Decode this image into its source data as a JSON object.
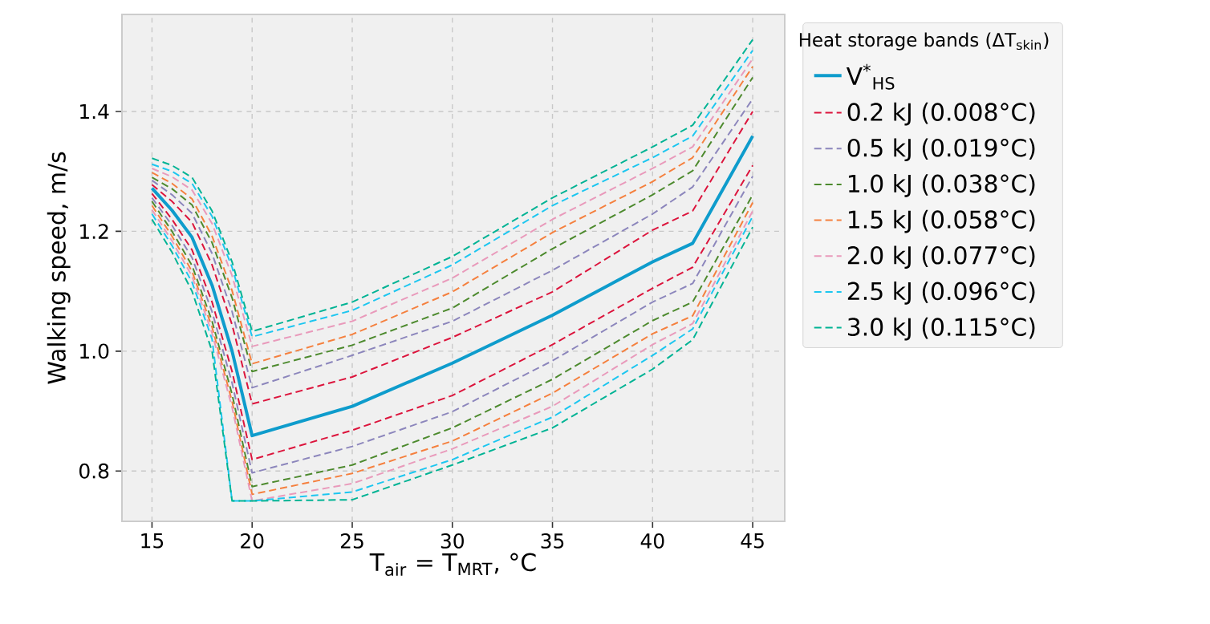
{
  "chart_data": {
    "type": "line",
    "xlabel": "T$_{air}$ = T$_{MRT}$, °C",
    "ylabel": "Walking speed, m/s",
    "legend_title": "Heat storage bands (ΔT$_{skin}$)",
    "x": [
      15,
      16,
      17,
      18,
      19,
      20,
      25,
      30,
      35,
      40,
      42,
      45
    ],
    "series": [
      {
        "name": "V$^{*}$$_{HS}$",
        "color": "#0e9ccc",
        "line_style": "solid",
        "values": [
          1.272,
          1.235,
          1.19,
          1.11,
          1.0,
          0.859,
          0.908,
          0.98,
          1.06,
          1.149,
          1.18,
          1.359
        ]
      },
      {
        "name": "0.2 kJ (0.008°C)",
        "color": "#dc143c",
        "line_style": "dashed",
        "values": [
          1.278,
          1.25,
          1.215,
          1.144,
          1.044,
          0.912,
          0.957,
          1.023,
          1.099,
          1.202,
          1.234,
          1.4
        ]
      },
      {
        "color": "#dc143c",
        "line_style": "dashed",
        "values": [
          1.263,
          1.22,
          1.169,
          1.082,
          0.966,
          0.819,
          0.868,
          0.926,
          1.011,
          1.105,
          1.14,
          1.31
        ]
      },
      {
        "name": "0.5 kJ (0.019°C)",
        "color": "#8c86bc",
        "line_style": "dashed",
        "values": [
          1.285,
          1.261,
          1.23,
          1.163,
          1.066,
          0.939,
          0.993,
          1.05,
          1.135,
          1.229,
          1.274,
          1.421
        ]
      },
      {
        "color": "#8c86bc",
        "line_style": "dashed",
        "values": [
          1.256,
          1.21,
          1.156,
          1.066,
          0.947,
          0.797,
          0.841,
          0.899,
          0.984,
          1.082,
          1.113,
          1.292
        ]
      },
      {
        "name": "1.0 kJ (0.038°C)",
        "color": "#4d8a2e",
        "line_style": "dashed",
        "values": [
          1.29,
          1.271,
          1.244,
          1.181,
          1.089,
          0.966,
          1.01,
          1.072,
          1.171,
          1.261,
          1.301,
          1.457
        ]
      },
      {
        "color": "#4d8a2e",
        "line_style": "dashed",
        "values": [
          1.25,
          1.2,
          1.143,
          1.05,
          0.928,
          0.774,
          0.81,
          0.872,
          0.953,
          1.051,
          1.082,
          1.261
        ]
      },
      {
        "name": "1.5 kJ (0.058°C)",
        "color": "#f5803e",
        "line_style": "dashed",
        "values": [
          1.298,
          1.28,
          1.254,
          1.192,
          1.101,
          0.979,
          1.028,
          1.099,
          1.198,
          1.283,
          1.323,
          1.475
        ]
      },
      {
        "color": "#f5803e",
        "line_style": "dashed",
        "values": [
          1.243,
          1.192,
          1.133,
          1.04,
          0.916,
          0.761,
          0.796,
          0.85,
          0.93,
          1.029,
          1.059,
          1.248
        ]
      },
      {
        "name": "2.0 kJ (0.077°C)",
        "color": "#e99abb",
        "line_style": "dashed",
        "values": [
          1.305,
          1.291,
          1.269,
          1.213,
          1.126,
          1.008,
          1.05,
          1.122,
          1.22,
          1.305,
          1.341,
          1.488
        ]
      },
      {
        "color": "#e99abb",
        "line_style": "dashed",
        "values": [
          1.236,
          1.184,
          1.125,
          1.03,
          0.906,
          0.75,
          0.779,
          0.837,
          0.908,
          1.011,
          1.046,
          1.234
        ]
      },
      {
        "name": "2.5 kJ (0.096°C)",
        "color": "#1cc6f0",
        "line_style": "dashed",
        "values": [
          1.312,
          1.3,
          1.28,
          1.225,
          1.14,
          1.024,
          1.068,
          1.144,
          1.243,
          1.323,
          1.359,
          1.502
        ]
      },
      {
        "color": "#1cc6f0",
        "line_style": "dashed",
        "values": [
          1.229,
          1.176,
          1.115,
          1.02,
          0.75,
          0.75,
          0.765,
          0.819,
          0.89,
          0.993,
          1.037,
          1.225
        ]
      },
      {
        "name": "3.0 kJ (0.115°C)",
        "color": "#00b394",
        "line_style": "dashed",
        "values": [
          1.322,
          1.31,
          1.29,
          1.234,
          1.149,
          1.033,
          1.082,
          1.158,
          1.256,
          1.341,
          1.377,
          1.52
        ]
      },
      {
        "color": "#00b394",
        "line_style": "dashed",
        "values": [
          1.22,
          1.165,
          1.1,
          1.0,
          0.75,
          0.75,
          0.752,
          0.81,
          0.872,
          0.97,
          1.019,
          1.207
        ]
      }
    ],
    "xlim": [
      13.5,
      46.6
    ],
    "ylim": [
      0.716,
      1.562
    ],
    "xticks": [
      15,
      20,
      25,
      30,
      35,
      40,
      45
    ],
    "yticks": [
      {
        "value": 0.8,
        "label": "0.8"
      },
      {
        "value": 1.0,
        "label": "1.0"
      },
      {
        "value": 1.2,
        "label": "1.2"
      },
      {
        "value": 1.4,
        "label": "1.4"
      }
    ],
    "grid": true,
    "legend": "right"
  }
}
